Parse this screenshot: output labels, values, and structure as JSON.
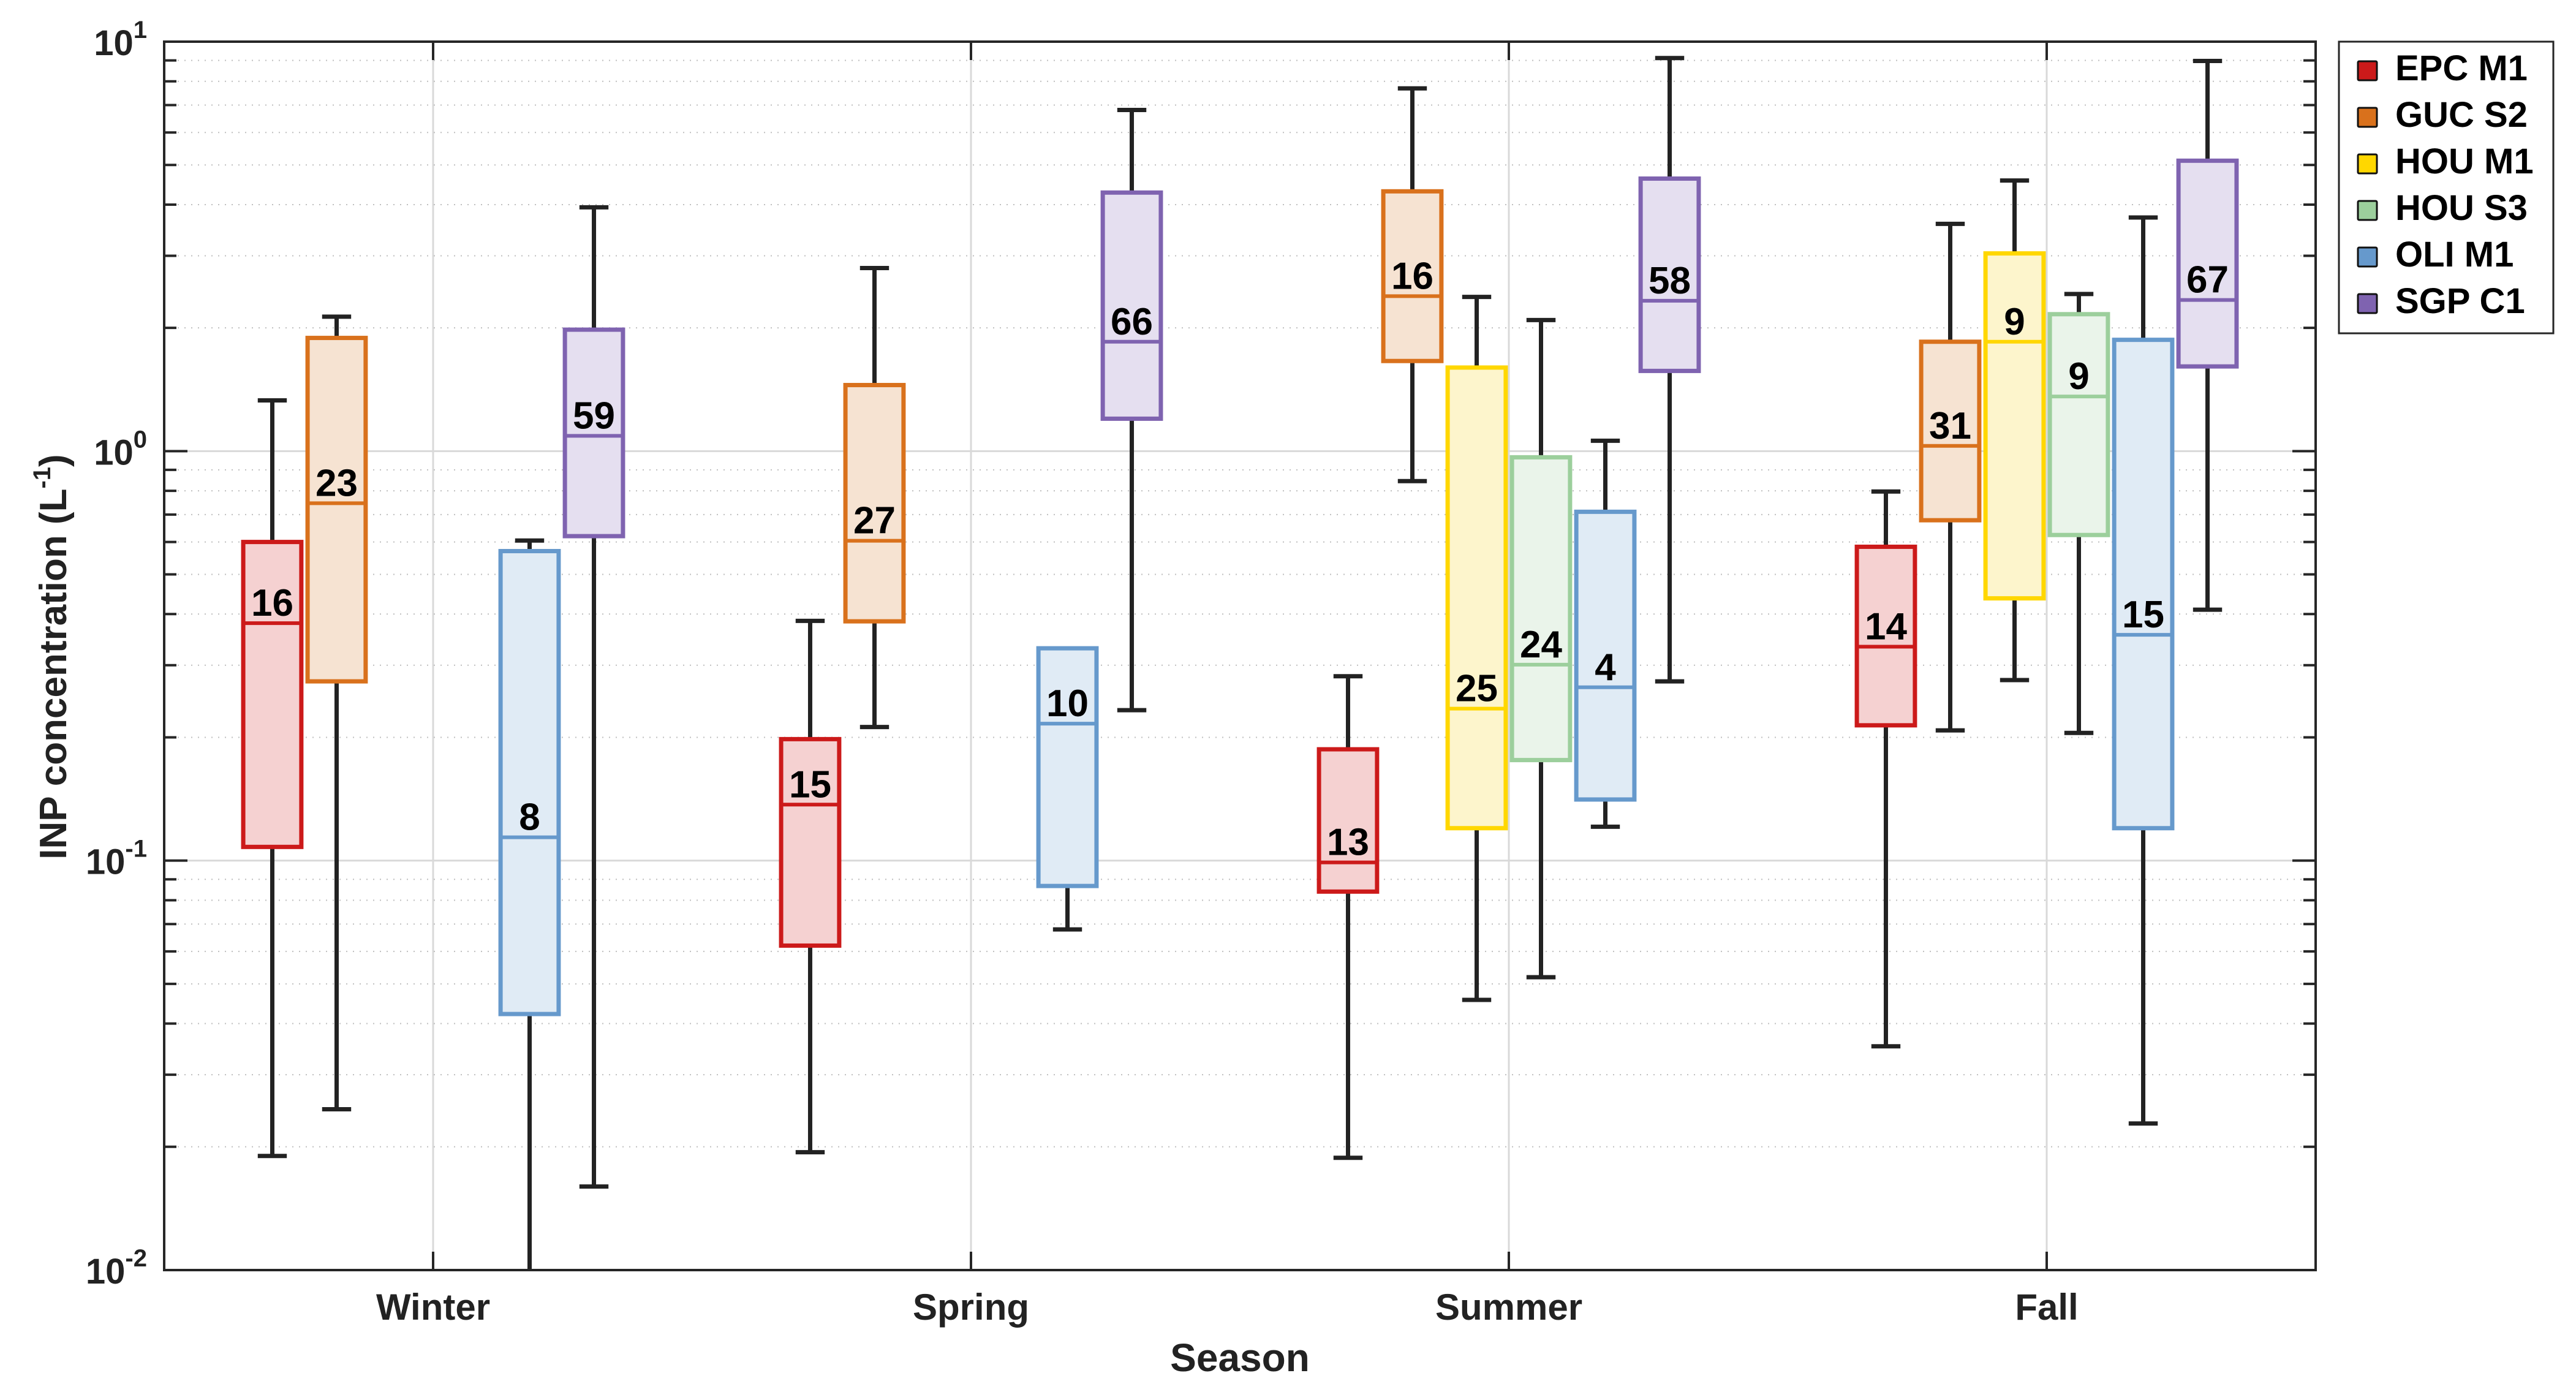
{
  "chart_data": {
    "type": "box",
    "title": "",
    "xlabel": "Season",
    "ylabel": "INP concentration (L",
    "ylabel_superscript": "-1",
    "ylabel_suffix": ")",
    "yscale": "log",
    "ylim": [
      0.01,
      10
    ],
    "y_ticks": [
      {
        "base": "10",
        "exp": "-2",
        "value": 0.01
      },
      {
        "base": "10",
        "exp": "-1",
        "value": 0.1
      },
      {
        "base": "10",
        "exp": "0",
        "value": 1
      },
      {
        "base": "10",
        "exp": "1",
        "value": 10
      }
    ],
    "grid": true,
    "minor_grid": true,
    "legend_position": "outside-top-right",
    "categories": [
      "Winter",
      "Spring",
      "Summer",
      "Fall"
    ],
    "series": [
      {
        "name": "EPC M1",
        "color": "#cc1a1a",
        "fill": "#f5d1d1",
        "boxes": [
          {
            "season": "Winter",
            "n": 16,
            "whisker_low": 0.019,
            "q1": 0.108,
            "median": 0.38,
            "q3": 0.6,
            "whisker_high": 1.33
          },
          {
            "season": "Spring",
            "n": 15,
            "whisker_low": 0.0194,
            "q1": 0.062,
            "median": 0.137,
            "q3": 0.198,
            "whisker_high": 0.385
          },
          {
            "season": "Summer",
            "n": 13,
            "whisker_low": 0.0188,
            "q1": 0.084,
            "median": 0.099,
            "q3": 0.187,
            "whisker_high": 0.282
          },
          {
            "season": "Fall",
            "n": 14,
            "whisker_low": 0.0352,
            "q1": 0.214,
            "median": 0.333,
            "q3": 0.584,
            "whisker_high": 0.797
          }
        ]
      },
      {
        "name": "GUC S2",
        "color": "#d9711c",
        "fill": "#f6e3d2",
        "boxes": [
          {
            "season": "Winter",
            "n": 23,
            "whisker_low": 0.0247,
            "q1": 0.274,
            "median": 0.746,
            "q3": 1.89,
            "whisker_high": 2.13
          },
          {
            "season": "Spring",
            "n": 27,
            "whisker_low": 0.212,
            "q1": 0.384,
            "median": 0.604,
            "q3": 1.45,
            "whisker_high": 2.8
          },
          {
            "season": "Summer",
            "n": 16,
            "whisker_low": 0.845,
            "q1": 1.66,
            "median": 2.39,
            "q3": 4.31,
            "whisker_high": 7.69
          },
          {
            "season": "Fall",
            "n": 31,
            "whisker_low": 0.208,
            "q1": 0.678,
            "median": 1.03,
            "q3": 1.85,
            "whisker_high": 3.59
          }
        ]
      },
      {
        "name": "HOU M1",
        "color": "#ffd700",
        "fill": "#fdf5cc",
        "boxes": [
          {
            "season": "Summer",
            "n": 25,
            "whisker_low": 0.0457,
            "q1": 0.12,
            "median": 0.235,
            "q3": 1.6,
            "whisker_high": 2.38
          },
          {
            "season": "Fall",
            "n": 9,
            "whisker_low": 0.276,
            "q1": 0.437,
            "median": 1.85,
            "q3": 3.04,
            "whisker_high": 4.58
          }
        ]
      },
      {
        "name": "HOU S3",
        "color": "#9ccf9c",
        "fill": "#eaf4ea",
        "boxes": [
          {
            "season": "Summer",
            "n": 24,
            "whisker_low": 0.0519,
            "q1": 0.176,
            "median": 0.301,
            "q3": 0.966,
            "whisker_high": 2.09
          },
          {
            "season": "Fall",
            "n": 9,
            "whisker_low": 0.205,
            "q1": 0.624,
            "median": 1.36,
            "q3": 2.16,
            "whisker_high": 2.42
          }
        ]
      },
      {
        "name": "OLI M1",
        "color": "#6699cc",
        "fill": "#e0ebf5",
        "boxes": [
          {
            "season": "Winter",
            "n": 8,
            "whisker_low": 0.005,
            "q1": 0.0422,
            "median": 0.114,
            "q3": 0.57,
            "whisker_high": 0.605
          },
          {
            "season": "Spring",
            "n": 10,
            "whisker_low": 0.0679,
            "q1": 0.0867,
            "median": 0.216,
            "q3": 0.33,
            "whisker_high": 0.33
          },
          {
            "season": "Summer",
            "n": 4,
            "whisker_low": 0.121,
            "q1": 0.141,
            "median": 0.265,
            "q3": 0.711,
            "whisker_high": 1.06
          },
          {
            "season": "Fall",
            "n": 15,
            "whisker_low": 0.0228,
            "q1": 0.12,
            "median": 0.356,
            "q3": 1.87,
            "whisker_high": 3.72
          }
        ]
      },
      {
        "name": "SGP C1",
        "color": "#7f63b0",
        "fill": "#e5dff0",
        "boxes": [
          {
            "season": "Winter",
            "n": 59,
            "whisker_low": 0.016,
            "q1": 0.62,
            "median": 1.09,
            "q3": 1.98,
            "whisker_high": 3.94
          },
          {
            "season": "Spring",
            "n": 66,
            "whisker_low": 0.233,
            "q1": 1.2,
            "median": 1.85,
            "q3": 4.28,
            "whisker_high": 6.81
          },
          {
            "season": "Summer",
            "n": 58,
            "whisker_low": 0.274,
            "q1": 1.57,
            "median": 2.33,
            "q3": 4.63,
            "whisker_high": 9.12
          },
          {
            "season": "Fall",
            "n": 67,
            "whisker_low": 0.41,
            "q1": 1.61,
            "median": 2.34,
            "q3": 5.12,
            "whisker_high": 8.97
          }
        ]
      }
    ]
  }
}
